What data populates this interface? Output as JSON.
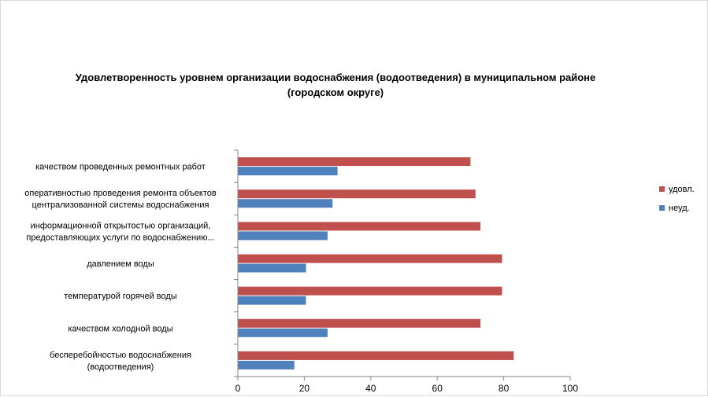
{
  "chart_data": {
    "type": "bar",
    "orientation": "horizontal",
    "title": [
      "Удовлетворенность уровнем организации водоснабжения (водоотведения) в муниципальном районе",
      "(городском округе)"
    ],
    "categories": [
      [
        "качеством проведенных ремонтных работ"
      ],
      [
        "оперативностью проведения ремонта объектов",
        "централизованной системы водоснабжения"
      ],
      [
        "информационной открытостью организаций,",
        "предоставляющих услуги по водоснабжению..."
      ],
      [
        "давлением воды"
      ],
      [
        "температурой горячей воды"
      ],
      [
        "качеством холодной воды"
      ],
      [
        "бесперебойностью водоснабжения",
        "(водоотведения)"
      ]
    ],
    "series": [
      {
        "name": "удовл.",
        "color": "#c0504d",
        "values": [
          70,
          71.5,
          73,
          79.5,
          79.5,
          73,
          83
        ]
      },
      {
        "name": "неуд.",
        "color": "#4f81bd",
        "values": [
          30,
          28.5,
          27,
          20.5,
          20.5,
          27,
          17
        ]
      }
    ],
    "xlim": [
      0,
      100
    ],
    "xticks": [
      "0",
      "20",
      "40",
      "60",
      "80",
      "100"
    ],
    "grid": false,
    "legend_position": "right"
  }
}
